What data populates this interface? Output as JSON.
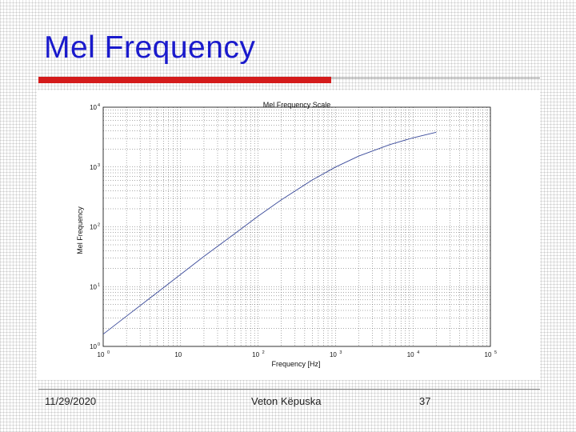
{
  "slide": {
    "title": "Mel Frequency",
    "footer": {
      "date": "11/29/2020",
      "author": "Veton Këpuska",
      "page": "37"
    },
    "colors": {
      "title": "#1a1acc",
      "accent_bar": "#d41b1b"
    }
  },
  "chart_data": {
    "type": "line",
    "title": "Mel Frequency Scale",
    "xlabel": "Frequency [Hz]",
    "ylabel": "Mel Frequency",
    "xscale": "log",
    "yscale": "log",
    "xlim": [
      1,
      100000
    ],
    "ylim": [
      1,
      10000
    ],
    "grid": true,
    "x_ticks": [
      {
        "base": "10",
        "exp": "0"
      },
      {
        "base": "10",
        "exp": ""
      },
      {
        "base": "10",
        "exp": "2"
      },
      {
        "base": "10",
        "exp": "3"
      },
      {
        "base": "10",
        "exp": "4"
      },
      {
        "base": "10",
        "exp": "5"
      }
    ],
    "y_ticks": [
      {
        "base": "10",
        "exp": "0"
      },
      {
        "base": "10",
        "exp": "1"
      },
      {
        "base": "10",
        "exp": "2"
      },
      {
        "base": "10",
        "exp": "3"
      },
      {
        "base": "10",
        "exp": "4"
      }
    ],
    "series": [
      {
        "color": "#3a4a9a",
        "x": [
          1,
          2,
          5,
          10,
          20,
          50,
          100,
          200,
          500,
          1000,
          2000,
          5000,
          10000,
          20000
        ],
        "y": [
          1.6,
          3.2,
          8,
          16,
          32,
          77,
          150,
          283,
          607,
          1000,
          1521,
          2363,
          3073,
          3817
        ]
      }
    ]
  }
}
